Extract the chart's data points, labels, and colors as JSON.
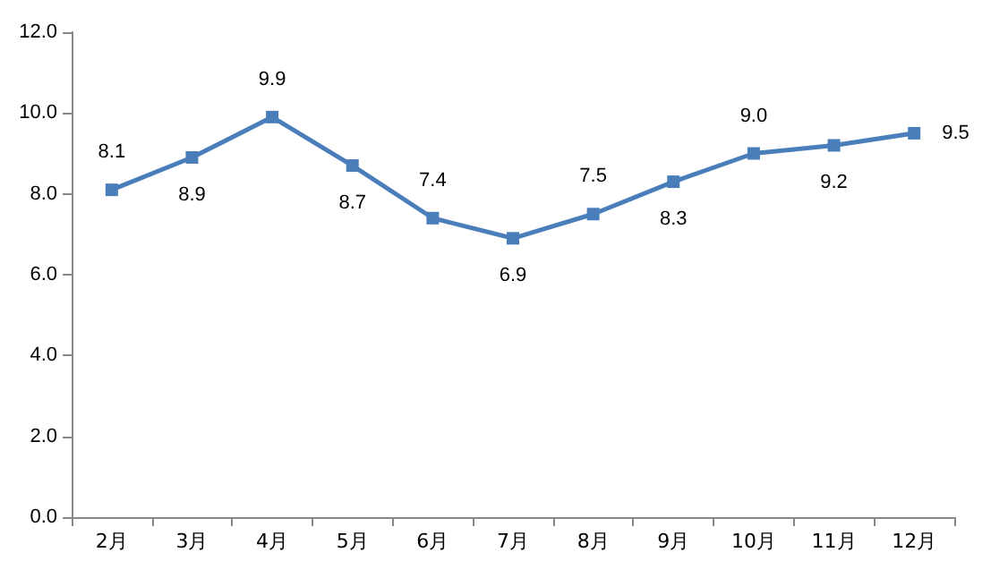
{
  "chart_data": {
    "type": "line",
    "categories": [
      "2月",
      "3月",
      "4月",
      "5月",
      "6月",
      "7月",
      "8月",
      "9月",
      "10月",
      "11月",
      "12月"
    ],
    "series": [
      {
        "color": "#4a7ebb",
        "values": [
          8.1,
          8.9,
          9.9,
          8.7,
          7.4,
          6.9,
          7.5,
          8.3,
          9.0,
          9.2,
          9.5
        ]
      }
    ],
    "value_labels": [
      "8.1",
      "8.9",
      "9.9",
      "8.7",
      "7.4",
      "6.9",
      "7.5",
      "8.3",
      "9.0",
      "9.2",
      "9.5"
    ],
    "ylim": [
      0,
      12
    ],
    "yticks": [
      {
        "value": 0,
        "label": "0.0"
      },
      {
        "value": 2,
        "label": "2.0"
      },
      {
        "value": 4,
        "label": "4.0"
      },
      {
        "value": 6,
        "label": "6.0"
      },
      {
        "value": 8,
        "label": "8.0"
      },
      {
        "value": 10,
        "label": "10.0"
      },
      {
        "value": 12,
        "label": "12.0"
      }
    ],
    "grid": false,
    "marker": "square",
    "line_style": "solid"
  }
}
